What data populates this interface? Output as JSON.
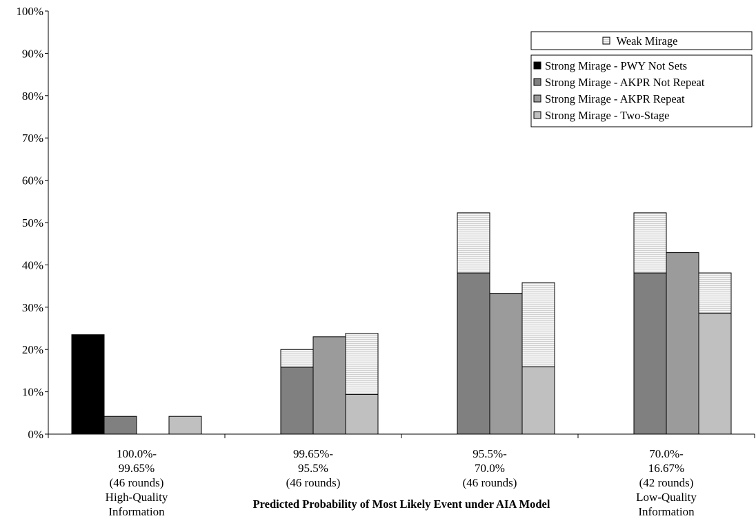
{
  "chart_data": {
    "type": "bar",
    "stacked_segments": true,
    "title": "",
    "xlabel": "Predicted Probability of Most Likely Event under AIA Model",
    "ylabel": "",
    "ylim": [
      0,
      100
    ],
    "y_ticks": [
      "0%",
      "10%",
      "20%",
      "30%",
      "40%",
      "50%",
      "60%",
      "70%",
      "80%",
      "90%",
      "100%"
    ],
    "grid": false,
    "legend_position": "top-right",
    "categories": [
      [
        "100.0%-",
        "99.65%",
        "(46 rounds)",
        "High-Quality",
        "Information"
      ],
      [
        "99.65%-",
        "95.5%",
        "(46 rounds)"
      ],
      [
        "95.5%-",
        "70.0%",
        "(46 rounds)"
      ],
      [
        "70.0%-",
        "16.67%",
        "(42 rounds)",
        "Low-Quality",
        "Information"
      ]
    ],
    "weak_series": {
      "name": "Weak Mirage",
      "color": "#ececec",
      "pattern": "horizontal-hatch",
      "values": [
        [
          0,
          0,
          0,
          0
        ],
        [
          0,
          4.2,
          0,
          14.4
        ],
        [
          0,
          14.2,
          0,
          19.9
        ],
        [
          0,
          14.2,
          0,
          9.5
        ]
      ]
    },
    "series": [
      {
        "name": "Strong Mirage - PWY Not Sets",
        "color": "#000000",
        "values": [
          23.5,
          0,
          0,
          0
        ]
      },
      {
        "name": "Strong Mirage - AKPR Not Repeat",
        "color": "#808080",
        "values": [
          4.2,
          15.8,
          38.1,
          38.1
        ]
      },
      {
        "name": "Strong Mirage - AKPR Repeat",
        "color": "#9b9b9b",
        "values": [
          0,
          23.0,
          33.3,
          42.9
        ]
      },
      {
        "name": "Strong Mirage - Two-Stage",
        "color": "#c0c0c0",
        "values": [
          4.2,
          9.4,
          15.9,
          28.6
        ]
      }
    ]
  }
}
